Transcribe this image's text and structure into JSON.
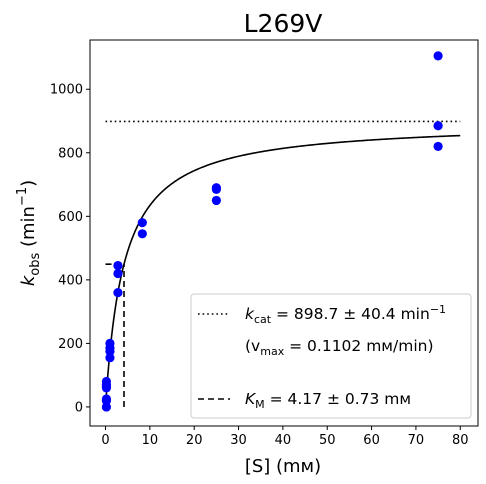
{
  "chart_data": {
    "type": "scatter",
    "title": "L269V",
    "xlabel": "[S] (mм)",
    "ylabel_main": "k",
    "ylabel_sub": "obs",
    "ylabel_unit_pre": " (min",
    "ylabel_unit_sup": "−1",
    "ylabel_unit_post": ")",
    "xlim": [
      -3.5,
      84
    ],
    "ylim": [
      -60,
      1155
    ],
    "xticks": [
      0,
      10,
      20,
      30,
      40,
      50,
      60,
      70,
      80
    ],
    "yticks": [
      0,
      200,
      400,
      600,
      800,
      1000
    ],
    "grid": false,
    "legend_position": "lower-right",
    "point_color": "#0000ff",
    "series": [
      {
        "kind": "points",
        "x": [
          0.2,
          0.2,
          0.2,
          0.2,
          0.2,
          0.2,
          0.2,
          1.0,
          1.0,
          1.0,
          1.0,
          2.8,
          2.8,
          2.8,
          8.3,
          8.3,
          25,
          25,
          25,
          75,
          75,
          75
        ],
        "y": [
          0,
          20,
          25,
          60,
          70,
          80,
          65,
          155,
          175,
          185,
          200,
          360,
          420,
          445,
          545,
          580,
          650,
          685,
          690,
          820,
          885,
          1105
        ]
      },
      {
        "kind": "fit",
        "model": "michaelis-menten",
        "kcat": 898.7,
        "km": 4.17,
        "x_range": [
          0,
          80
        ]
      }
    ],
    "reference_lines": {
      "kcat_line": {
        "y": 898.7,
        "x_range": [
          0,
          80
        ],
        "style": "dotted"
      },
      "km_line": {
        "x": 4.17,
        "y_range": [
          0,
          449.35
        ],
        "style": "dashed"
      },
      "half_vmax_line": {
        "y": 449.35,
        "x_range": [
          0,
          4.17
        ],
        "style": "dashed"
      }
    },
    "legend": {
      "kcat_label_main": "k",
      "kcat_label_sub": "cat",
      "kcat_label_value": " = 898.7 ± 40.4 min",
      "kcat_label_sup": "−1",
      "vmax_label_pre": "(v",
      "vmax_label_sub": "max",
      "vmax_label_post": " = 0.1102 mм/min)",
      "km_label_main": "K",
      "km_label_sub": "M",
      "km_label_value": " = 4.17 ± 0.73 mм"
    }
  }
}
